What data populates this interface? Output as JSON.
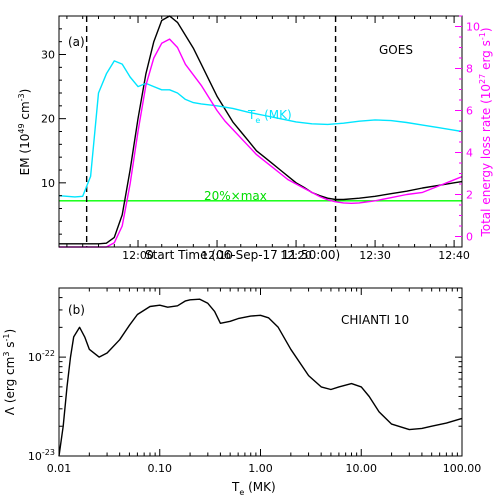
{
  "chart_data": [
    {
      "type": "line",
      "panel_label": "(a)",
      "annotation": "GOES",
      "xlabel": "Start Time (06-Sep-17 11:50:00)",
      "x_unit": "minutes after 11:50:00",
      "xlim": [
        0,
        51
      ],
      "x_ticks": [
        {
          "v": 10,
          "label": "12:00"
        },
        {
          "v": 20,
          "label": "12:10"
        },
        {
          "v": 30,
          "label": "12:20"
        },
        {
          "v": 40,
          "label": "12:30"
        },
        {
          "v": 50,
          "label": "12:40"
        }
      ],
      "y_left": {
        "label": "EM (10",
        "label_sup": "49",
        "label_mid": " cm",
        "label_sup2": "-3",
        "label_end": ")",
        "lim": [
          0,
          36
        ],
        "ticks": [
          10,
          20,
          30
        ]
      },
      "y_right": {
        "label": "Total energy loss rate (10",
        "label_sup": "27",
        "label_mid": " erg s",
        "label_sup2": "-1",
        "label_end": ")",
        "color": "#ff00ff",
        "lim": [
          -0.5,
          10.5
        ],
        "ticks": [
          0,
          2,
          4,
          6,
          8,
          10
        ]
      },
      "vlines": [
        3.5,
        35
      ],
      "series": [
        {
          "key": "em",
          "color": "#000000",
          "axis": "left",
          "x": [
            0,
            3,
            5,
            6,
            7,
            8,
            9,
            10,
            11,
            12,
            13,
            14,
            15,
            16,
            17,
            18,
            19,
            20,
            21,
            22,
            23,
            24,
            25,
            26,
            27,
            28,
            29,
            30,
            31,
            32,
            33,
            34,
            35,
            36,
            38,
            40,
            42,
            44,
            46,
            48,
            50,
            51
          ],
          "y": [
            0.5,
            0.5,
            0.5,
            0.6,
            1.5,
            5,
            12,
            20,
            27,
            32,
            35.3,
            36,
            35,
            33,
            31,
            28.5,
            26,
            23.5,
            21.5,
            19.5,
            18,
            16.5,
            15,
            14,
            13,
            12,
            11,
            10,
            9.3,
            8.5,
            8,
            7.6,
            7.4,
            7.4,
            7.6,
            7.9,
            8.3,
            8.7,
            9.2,
            9.6,
            10,
            10.2
          ]
        },
        {
          "key": "te",
          "color": "#00e5ff",
          "axis": "left",
          "name": "T",
          "name_sub": "e",
          "name_rest": " (MK)",
          "x": [
            0,
            2,
            3,
            4,
            5,
            6,
            7,
            8,
            9,
            10,
            11,
            12,
            13,
            14,
            15,
            16,
            17,
            18,
            20,
            22,
            24,
            26,
            28,
            30,
            32,
            34,
            36,
            38,
            40,
            42,
            44,
            46,
            48,
            50,
            51
          ],
          "y": [
            8,
            7.8,
            7.9,
            11,
            24,
            27,
            29,
            28.5,
            26.5,
            25,
            25.5,
            25,
            24.5,
            24.5,
            24,
            23,
            22.5,
            22.3,
            22,
            21.6,
            21,
            20.5,
            20,
            19.5,
            19.2,
            19.1,
            19.3,
            19.6,
            19.8,
            19.7,
            19.4,
            19,
            18.6,
            18.2,
            18
          ]
        },
        {
          "key": "loss",
          "color": "#ff00ff",
          "axis": "right",
          "x": [
            0,
            3,
            5,
            6,
            7,
            8,
            9,
            10,
            11,
            12,
            13,
            14,
            15,
            16,
            17,
            18,
            19,
            20,
            21,
            22,
            23,
            24,
            25,
            26,
            27,
            28,
            29,
            30,
            31,
            32,
            33,
            34,
            35,
            36,
            37,
            38,
            40,
            42,
            44,
            46,
            48,
            50,
            51
          ],
          "y": [
            -0.5,
            -0.5,
            -0.5,
            -0.5,
            -0.3,
            0.5,
            2.5,
            5,
            7.2,
            8.5,
            9.2,
            9.4,
            9,
            8.2,
            7.7,
            7.2,
            6.6,
            6,
            5.5,
            5.1,
            4.7,
            4.3,
            3.9,
            3.6,
            3.3,
            3,
            2.7,
            2.5,
            2.3,
            2.1,
            1.9,
            1.75,
            1.65,
            1.6,
            1.58,
            1.6,
            1.7,
            1.85,
            2,
            2.1,
            2.4,
            2.7,
            2.85
          ]
        }
      ],
      "hline": {
        "y": 7.2,
        "color": "#00ff00",
        "label": "20%×max"
      }
    },
    {
      "type": "line",
      "panel_label": "(b)",
      "annotation": "CHIANTI 10",
      "x_scale": "log",
      "y_scale": "log",
      "xlabel": "T",
      "xlabel_sub": "e",
      "xlabel_rest": " (MK)",
      "ylabel": "Λ (erg cm",
      "ylabel_sup": "3",
      "ylabel_mid": " s",
      "ylabel_sup2": "-1",
      "ylabel_end": ")",
      "xlim": [
        0.01,
        100
      ],
      "ylim": [
        1e-23,
        5e-22
      ],
      "x_ticks": [
        {
          "v": 0.01,
          "label": "0.01"
        },
        {
          "v": 0.1,
          "label": "0.10"
        },
        {
          "v": 1,
          "label": "1.00"
        },
        {
          "v": 10,
          "label": "10.00"
        },
        {
          "v": 100,
          "label": "100.00"
        }
      ],
      "y_ticks": [
        {
          "v": 1e-23,
          "base": "10",
          "exp": "-23"
        },
        {
          "v": 1e-22,
          "base": "10",
          "exp": "-22"
        }
      ],
      "series": [
        {
          "key": "lambda",
          "color": "#000000",
          "x": [
            0.01,
            0.011,
            0.012,
            0.013,
            0.014,
            0.016,
            0.018,
            0.02,
            0.025,
            0.03,
            0.04,
            0.05,
            0.06,
            0.08,
            0.1,
            0.12,
            0.15,
            0.18,
            0.2,
            0.25,
            0.3,
            0.35,
            0.4,
            0.5,
            0.6,
            0.8,
            1.0,
            1.2,
            1.5,
            2,
            3,
            4,
            5,
            6,
            8,
            10,
            12,
            15,
            20,
            30,
            40,
            50,
            70,
            100
          ],
          "y": [
            1e-23,
            2e-23,
            5e-23,
            1e-22,
            1.6e-22,
            2e-22,
            1.6e-22,
            1.2e-22,
            1e-22,
            1.1e-22,
            1.5e-22,
            2.1e-22,
            2.7e-22,
            3.25e-22,
            3.35e-22,
            3.2e-22,
            3.3e-22,
            3.7e-22,
            3.8e-22,
            3.85e-22,
            3.5e-22,
            2.9e-22,
            2.2e-22,
            2.3e-22,
            2.45e-22,
            2.6e-22,
            2.65e-22,
            2.5e-22,
            2e-22,
            1.2e-22,
            6.5e-23,
            5e-23,
            4.7e-23,
            5e-23,
            5.4e-23,
            5e-23,
            4e-23,
            2.8e-23,
            2.1e-23,
            1.85e-23,
            1.9e-23,
            2e-23,
            2.15e-23,
            2.4e-23
          ]
        }
      ]
    }
  ]
}
